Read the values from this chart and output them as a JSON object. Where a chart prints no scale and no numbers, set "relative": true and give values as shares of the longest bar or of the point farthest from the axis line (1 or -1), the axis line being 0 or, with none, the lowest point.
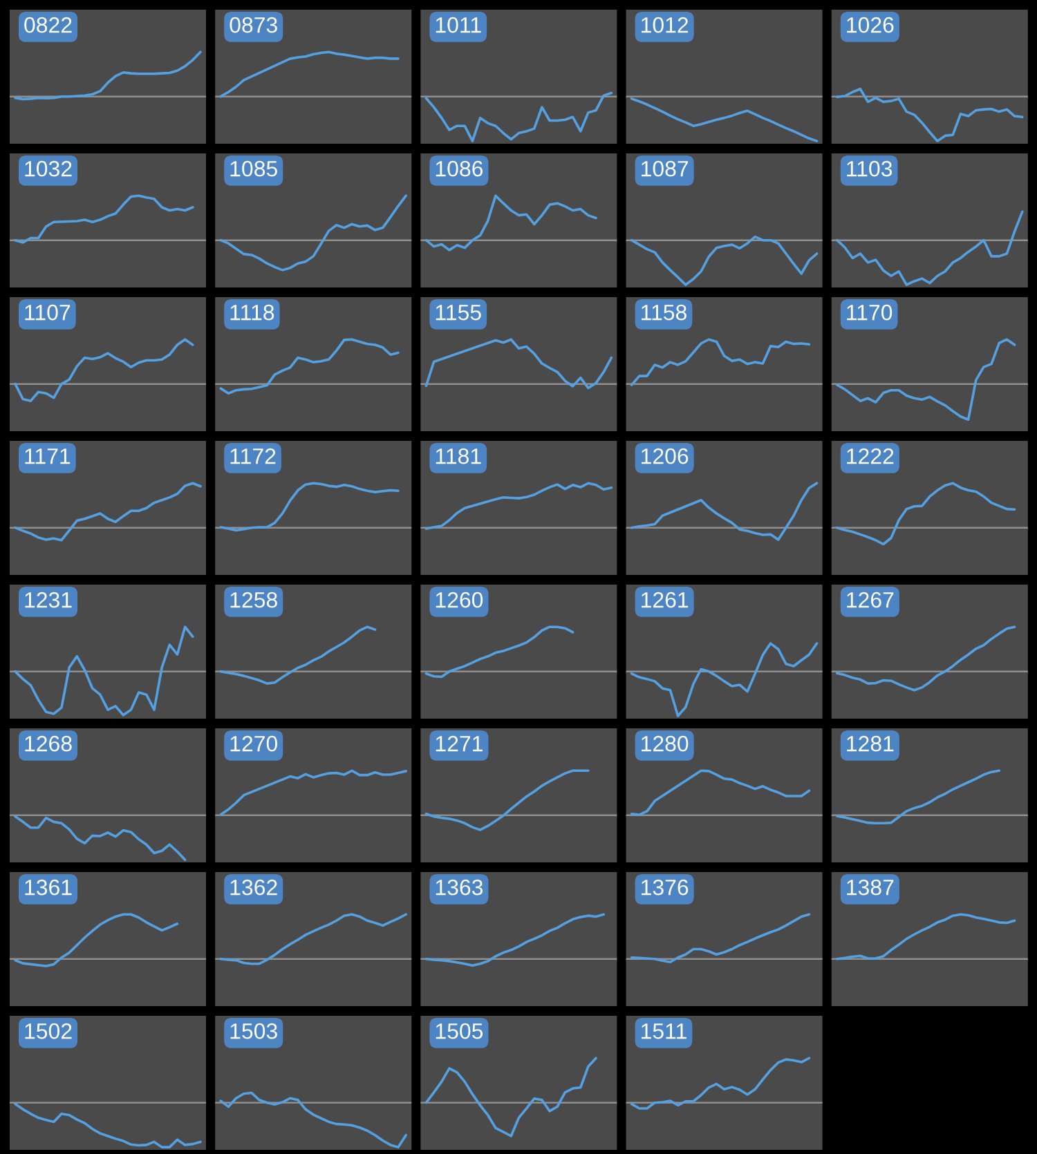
{
  "chart_data": [
    {
      "type": "line",
      "title": "0822",
      "relative": true,
      "categories": [
        null,
        null,
        null,
        null,
        null,
        null,
        null,
        null,
        null,
        null,
        null,
        null,
        null,
        null,
        null,
        null,
        null,
        null,
        null,
        null,
        null,
        null,
        null,
        null,
        null
      ],
      "values": [
        -0.03,
        -0.06,
        -0.05,
        -0.03,
        -0.04,
        -0.03,
        0,
        0,
        0.01,
        0.02,
        0.05,
        0.12,
        0.31,
        0.46,
        0.54,
        0.52,
        0.51,
        0.51,
        0.51,
        0.52,
        0.53,
        0.58,
        0.68,
        0.82,
        1
      ],
      "color": "#55a0e0",
      "ref_lines": [
        {
          "axis": "y",
          "value": 0,
          "color": "#8f8f8f"
        }
      ]
    },
    {
      "type": "line",
      "title": "0873",
      "relative": true,
      "categories": [
        null,
        null,
        null,
        null,
        null,
        null,
        null,
        null,
        null,
        null,
        null,
        null,
        null,
        null,
        null,
        null,
        null,
        null,
        null,
        null,
        null,
        null,
        null,
        null,
        null
      ],
      "values": [
        0,
        0.1,
        0.22,
        0.37,
        null,
        null,
        null,
        null,
        null,
        0.85,
        0.88,
        0.9,
        0.95,
        0.98,
        1,
        0.96,
        0.94,
        0.91,
        0.88,
        0.85,
        0.87,
        0.87,
        0.85,
        0.85,
        null
      ],
      "color": "#55a0e0",
      "ref_lines": [
        {
          "axis": "y",
          "value": 0,
          "color": "#8f8f8f"
        }
      ]
    },
    {
      "type": "line",
      "title": "1011",
      "relative": true,
      "categories": [
        null,
        null,
        null,
        null,
        null,
        null,
        null,
        null,
        null,
        null,
        null,
        null,
        null,
        null,
        null,
        null,
        null,
        null,
        null,
        null,
        null,
        null,
        null,
        null,
        null
      ],
      "values": [
        -0.04,
        -0.24,
        -0.48,
        -0.75,
        -0.66,
        -0.66,
        -1,
        -0.48,
        -0.6,
        -0.66,
        -0.82,
        -0.96,
        -0.82,
        -0.78,
        -0.72,
        -0.24,
        -0.54,
        -0.54,
        -0.52,
        -0.46,
        -0.78,
        -0.36,
        -0.31,
        0.02,
        0.08
      ],
      "color": "#55a0e0",
      "ref_lines": [
        {
          "axis": "y",
          "value": 0,
          "color": "#8f8f8f"
        }
      ]
    },
    {
      "type": "line",
      "title": "1012",
      "relative": true,
      "categories": [
        null,
        null,
        null,
        null,
        null,
        null,
        null,
        null,
        null,
        null,
        null,
        null,
        null,
        null,
        null,
        null,
        null,
        null,
        null,
        null,
        null,
        null,
        null,
        null,
        null
      ],
      "values": [
        -0.05,
        -0.11,
        -0.18,
        -0.26,
        -0.34,
        -0.43,
        -0.51,
        -0.58,
        -0.66,
        -0.62,
        -0.57,
        -0.52,
        -0.48,
        -0.43,
        -0.37,
        -0.32,
        -0.4,
        -0.48,
        -0.55,
        -0.63,
        -0.71,
        -0.78,
        -0.86,
        -0.94,
        -1
      ],
      "color": "#55a0e0",
      "ref_lines": [
        {
          "axis": "y",
          "value": 0,
          "color": "#8f8f8f"
        }
      ]
    },
    {
      "type": "line",
      "title": "1026",
      "relative": true,
      "categories": [
        null,
        null,
        null,
        null,
        null,
        null,
        null,
        null,
        null,
        null,
        null,
        null,
        null,
        null,
        null,
        null,
        null,
        null,
        null,
        null,
        null,
        null,
        null,
        null,
        null
      ],
      "values": [
        -0.01,
        0.01,
        0.1,
        0.17,
        -0.12,
        -0.03,
        -0.12,
        -0.1,
        -0.05,
        -0.34,
        -0.41,
        -0.59,
        -0.8,
        -1,
        -0.88,
        -0.86,
        -0.39,
        -0.44,
        -0.31,
        -0.29,
        -0.28,
        -0.34,
        -0.29,
        -0.44,
        -0.46
      ],
      "color": "#55a0e0",
      "ref_lines": [
        {
          "axis": "y",
          "value": 0,
          "color": "#8f8f8f"
        }
      ]
    },
    {
      "type": "line",
      "title": "1032",
      "relative": true,
      "categories": [
        null,
        null,
        null,
        null,
        null,
        null,
        null,
        null,
        null,
        null,
        null,
        null,
        null,
        null,
        null,
        null,
        null,
        null,
        null,
        null,
        null,
        null,
        null,
        null,
        null
      ],
      "values": [
        0,
        -0.05,
        0.05,
        0.05,
        0.31,
        0.41,
        null,
        null,
        0.43,
        0.46,
        0.41,
        0.46,
        0.54,
        0.6,
        0.8,
        0.98,
        1,
        0.96,
        0.93,
        0.74,
        0.67,
        0.7,
        0.67,
        0.74,
        null
      ],
      "color": "#55a0e0",
      "ref_lines": [
        {
          "axis": "y",
          "value": 0,
          "color": "#8f8f8f"
        }
      ]
    },
    {
      "type": "line",
      "title": "1085",
      "relative": true,
      "categories": [
        null,
        null,
        null,
        null,
        null,
        null,
        null,
        null,
        null,
        null,
        null,
        null,
        null,
        null,
        null,
        null,
        null,
        null,
        null,
        null,
        null,
        null,
        null,
        null,
        null
      ],
      "values": [
        0,
        -0.07,
        -0.19,
        -0.31,
        -0.33,
        -0.41,
        -0.52,
        -0.6,
        -0.67,
        -0.62,
        -0.52,
        -0.48,
        -0.36,
        -0.08,
        0.21,
        0.34,
        0.28,
        0.36,
        0.31,
        0.33,
        0.23,
        0.28,
        0.52,
        0.77,
        1
      ],
      "color": "#55a0e0",
      "ref_lines": [
        {
          "axis": "y",
          "value": 0,
          "color": "#8f8f8f"
        }
      ]
    },
    {
      "type": "line",
      "title": "1086",
      "relative": true,
      "categories": [
        null,
        null,
        null,
        null,
        null,
        null,
        null,
        null,
        null,
        null,
        null,
        null,
        null,
        null,
        null,
        null,
        null,
        null,
        null,
        null,
        null,
        null,
        null,
        null,
        null
      ],
      "values": [
        0,
        -0.14,
        -0.09,
        -0.22,
        -0.11,
        -0.17,
        0,
        0.11,
        0.44,
        1,
        0.83,
        0.67,
        0.56,
        0.58,
        0.36,
        0.56,
        0.8,
        0.83,
        0.76,
        0.67,
        0.7,
        0.56,
        0.5,
        null,
        null
      ],
      "color": "#55a0e0",
      "ref_lines": [
        {
          "axis": "y",
          "value": 0,
          "color": "#8f8f8f"
        }
      ]
    },
    {
      "type": "line",
      "title": "1087",
      "relative": true,
      "categories": [
        null,
        null,
        null,
        null,
        null,
        null,
        null,
        null,
        null,
        null,
        null,
        null,
        null,
        null,
        null,
        null,
        null,
        null,
        null,
        null,
        null,
        null,
        null,
        null,
        null
      ],
      "values": [
        0,
        -0.1,
        -0.2,
        -0.27,
        -0.5,
        -0.67,
        -0.83,
        -1,
        -0.87,
        -0.7,
        -0.37,
        -0.17,
        -0.13,
        -0.1,
        -0.18,
        -0.07,
        0.08,
        0,
        0,
        -0.07,
        -0.3,
        -0.53,
        -0.75,
        -0.45,
        -0.3
      ],
      "color": "#55a0e0",
      "ref_lines": [
        {
          "axis": "y",
          "value": 0,
          "color": "#8f8f8f"
        }
      ]
    },
    {
      "type": "line",
      "title": "1103",
      "relative": true,
      "categories": [
        null,
        null,
        null,
        null,
        null,
        null,
        null,
        null,
        null,
        null,
        null,
        null,
        null,
        null,
        null,
        null,
        null,
        null,
        null,
        null,
        null,
        null,
        null,
        null,
        null
      ],
      "values": [
        0,
        -0.16,
        -0.4,
        -0.3,
        -0.5,
        -0.44,
        -0.68,
        -0.8,
        -0.7,
        -1,
        -0.92,
        -0.86,
        -0.96,
        -0.8,
        -0.7,
        -0.5,
        -0.4,
        -0.26,
        -0.14,
        0,
        -0.36,
        -0.36,
        -0.3,
        0.2,
        0.64
      ],
      "color": "#55a0e0",
      "ref_lines": [
        {
          "axis": "y",
          "value": 0,
          "color": "#8f8f8f"
        }
      ]
    },
    {
      "type": "line",
      "title": "1107",
      "relative": true,
      "categories": [
        null,
        null,
        null,
        null,
        null,
        null,
        null,
        null,
        null,
        null,
        null,
        null,
        null,
        null,
        null,
        null,
        null,
        null,
        null,
        null,
        null,
        null,
        null,
        null,
        null
      ],
      "values": [
        0,
        -0.34,
        -0.38,
        -0.18,
        -0.21,
        -0.31,
        0,
        0.1,
        0.4,
        0.59,
        0.56,
        0.6,
        0.69,
        0.58,
        0.5,
        0.38,
        0.48,
        0.53,
        0.53,
        0.55,
        0.66,
        0.88,
        1,
        0.88,
        null
      ],
      "color": "#55a0e0",
      "ref_lines": [
        {
          "axis": "y",
          "value": 0,
          "color": "#8f8f8f"
        }
      ]
    },
    {
      "type": "line",
      "title": "1118",
      "relative": true,
      "categories": [
        null,
        null,
        null,
        null,
        null,
        null,
        null,
        null,
        null,
        null,
        null,
        null,
        null,
        null,
        null,
        null,
        null,
        null,
        null,
        null,
        null,
        null,
        null,
        null,
        null
      ],
      "values": [
        -0.1,
        -0.21,
        -0.14,
        -0.12,
        -0.11,
        -0.07,
        -0.03,
        0.21,
        0.3,
        0.37,
        0.59,
        0.55,
        0.49,
        0.51,
        0.55,
        0.75,
        0.99,
        1,
        0.95,
        0.9,
        0.88,
        0.82,
        0.66,
        0.7,
        null
      ],
      "color": "#55a0e0",
      "ref_lines": [
        {
          "axis": "y",
          "value": 0,
          "color": "#8f8f8f"
        }
      ]
    },
    {
      "type": "line",
      "title": "1155",
      "relative": true,
      "categories": [
        null,
        null,
        null,
        null,
        null,
        null,
        null,
        null,
        null,
        null,
        null,
        null,
        null,
        null,
        null,
        null,
        null,
        null,
        null,
        null,
        null,
        null,
        null,
        null,
        null
      ],
      "values": [
        -0.04,
        0.5,
        null,
        null,
        null,
        null,
        null,
        null,
        null,
        0.98,
        0.93,
        1,
        0.8,
        0.84,
        0.68,
        0.46,
        0.36,
        0.27,
        0.07,
        -0.05,
        0.14,
        -0.09,
        0.02,
        0.27,
        0.59
      ],
      "color": "#55a0e0",
      "ref_lines": [
        {
          "axis": "y",
          "value": 0,
          "color": "#8f8f8f"
        }
      ]
    },
    {
      "type": "line",
      "title": "1158",
      "relative": true,
      "categories": [
        null,
        null,
        null,
        null,
        null,
        null,
        null,
        null,
        null,
        null,
        null,
        null,
        null,
        null,
        null,
        null,
        null,
        null,
        null,
        null,
        null,
        null,
        null,
        null,
        null
      ],
      "values": [
        -0.02,
        0.18,
        0.18,
        0.43,
        0.37,
        0.49,
        0.43,
        0.51,
        null,
        0.91,
        1,
        0.95,
        0.63,
        0.52,
        0.55,
        0.45,
        0.49,
        0.46,
        0.85,
        0.83,
        0.95,
        0.9,
        0.91,
        0.89,
        null
      ],
      "color": "#55a0e0",
      "ref_lines": [
        {
          "axis": "y",
          "value": 0,
          "color": "#8f8f8f"
        }
      ]
    },
    {
      "type": "line",
      "title": "1170",
      "relative": true,
      "categories": [
        null,
        null,
        null,
        null,
        null,
        null,
        null,
        null,
        null,
        null,
        null,
        null,
        null,
        null,
        null,
        null,
        null,
        null,
        null,
        null,
        null,
        null,
        null,
        null,
        null
      ],
      "values": [
        -0.02,
        -0.12,
        -0.25,
        -0.38,
        -0.32,
        -0.41,
        -0.2,
        -0.14,
        -0.14,
        -0.26,
        -0.32,
        -0.35,
        -0.29,
        -0.39,
        -0.48,
        -0.61,
        -0.73,
        -0.8,
        0.09,
        0.38,
        0.45,
        0.92,
        1,
        0.88,
        null
      ],
      "color": "#55a0e0",
      "ref_lines": [
        {
          "axis": "y",
          "value": 0,
          "color": "#8f8f8f"
        }
      ]
    },
    {
      "type": "line",
      "title": "1171",
      "relative": true,
      "categories": [
        null,
        null,
        null,
        null,
        null,
        null,
        null,
        null,
        null,
        null,
        null,
        null,
        null,
        null,
        null,
        null,
        null,
        null,
        null,
        null,
        null,
        null,
        null,
        null,
        null
      ],
      "values": [
        0,
        -0.07,
        -0.13,
        -0.22,
        -0.27,
        -0.24,
        -0.28,
        -0.06,
        0.16,
        0.2,
        0.26,
        0.32,
        0.2,
        0.13,
        0.26,
        0.38,
        0.38,
        0.44,
        0.56,
        0.62,
        0.68,
        0.76,
        0.94,
        1,
        0.93
      ],
      "color": "#55a0e0",
      "ref_lines": [
        {
          "axis": "y",
          "value": 0,
          "color": "#8f8f8f"
        }
      ]
    },
    {
      "type": "line",
      "title": "1172",
      "relative": true,
      "categories": [
        null,
        null,
        null,
        null,
        null,
        null,
        null,
        null,
        null,
        null,
        null,
        null,
        null,
        null,
        null,
        null,
        null,
        null,
        null,
        null,
        null,
        null,
        null,
        null,
        null
      ],
      "values": [
        0.01,
        -0.02,
        -0.06,
        -0.03,
        0,
        0.01,
        0.01,
        0.11,
        0.32,
        0.61,
        0.84,
        0.97,
        1,
        0.98,
        0.94,
        0.92,
        0.96,
        0.93,
        0.87,
        0.83,
        0.8,
        0.82,
        0.84,
        0.83,
        null
      ],
      "color": "#55a0e0",
      "ref_lines": [
        {
          "axis": "y",
          "value": 0,
          "color": "#8f8f8f"
        }
      ]
    },
    {
      "type": "line",
      "title": "1181",
      "relative": true,
      "categories": [
        null,
        null,
        null,
        null,
        null,
        null,
        null,
        null,
        null,
        null,
        null,
        null,
        null,
        null,
        null,
        null,
        null,
        null,
        null,
        null,
        null,
        null,
        null,
        null,
        null
      ],
      "values": [
        -0.02,
        0.01,
        0.04,
        0.17,
        0.33,
        0.44,
        null,
        null,
        null,
        0.64,
        0.68,
        0.67,
        0.66,
        0.69,
        0.74,
        0.83,
        0.91,
        0.97,
        0.87,
        0.96,
        0.91,
        1,
        0.96,
        0.86,
        0.9
      ],
      "color": "#55a0e0",
      "ref_lines": [
        {
          "axis": "y",
          "value": 0,
          "color": "#8f8f8f"
        }
      ]
    },
    {
      "type": "line",
      "title": "1206",
      "relative": true,
      "categories": [
        null,
        null,
        null,
        null,
        null,
        null,
        null,
        null,
        null,
        null,
        null,
        null,
        null,
        null,
        null,
        null,
        null,
        null,
        null,
        null,
        null,
        null,
        null,
        null,
        null
      ],
      "values": [
        0,
        0.03,
        0.05,
        0.08,
        0.27,
        null,
        null,
        null,
        null,
        0.62,
        0.45,
        0.32,
        0.21,
        0.11,
        -0.04,
        -0.07,
        -0.12,
        -0.16,
        -0.15,
        -0.27,
        0,
        0.27,
        0.62,
        0.89,
        1
      ],
      "color": "#55a0e0",
      "ref_lines": [
        {
          "axis": "y",
          "value": 0,
          "color": "#8f8f8f"
        }
      ]
    },
    {
      "type": "line",
      "title": "1222",
      "relative": true,
      "categories": [
        null,
        null,
        null,
        null,
        null,
        null,
        null,
        null,
        null,
        null,
        null,
        null,
        null,
        null,
        null,
        null,
        null,
        null,
        null,
        null,
        null,
        null,
        null,
        null,
        null
      ],
      "values": [
        0,
        -0.05,
        -0.09,
        -0.15,
        -0.21,
        -0.28,
        -0.37,
        -0.23,
        0.17,
        0.42,
        0.48,
        0.49,
        0.7,
        0.84,
        0.95,
        1,
        0.9,
        0.84,
        0.81,
        0.7,
        0.56,
        0.49,
        0.42,
        0.41,
        null
      ],
      "color": "#55a0e0",
      "ref_lines": [
        {
          "axis": "y",
          "value": 0,
          "color": "#8f8f8f"
        }
      ]
    },
    {
      "type": "line",
      "title": "1231",
      "relative": true,
      "categories": [
        null,
        null,
        null,
        null,
        null,
        null,
        null,
        null,
        null,
        null,
        null,
        null,
        null,
        null,
        null,
        null,
        null,
        null,
        null,
        null,
        null,
        null,
        null,
        null,
        null
      ],
      "values": [
        0,
        -0.17,
        -0.31,
        -0.64,
        -0.91,
        -0.95,
        -0.81,
        0.09,
        0.34,
        0.03,
        -0.38,
        -0.52,
        -0.86,
        -0.78,
        -0.98,
        -0.86,
        -0.47,
        -0.52,
        -0.86,
        0.09,
        0.6,
        0.38,
        1,
        0.78,
        null
      ],
      "color": "#55a0e0",
      "ref_lines": [
        {
          "axis": "y",
          "value": 0,
          "color": "#8f8f8f"
        }
      ]
    },
    {
      "type": "line",
      "title": "1258",
      "relative": true,
      "categories": [
        null,
        null,
        null,
        null,
        null,
        null,
        null,
        null,
        null,
        null,
        null,
        null,
        null,
        null,
        null,
        null,
        null,
        null,
        null,
        null,
        null,
        null,
        null,
        null,
        null
      ],
      "values": [
        0,
        -0.03,
        -0.06,
        -0.1,
        -0.15,
        -0.2,
        -0.27,
        -0.25,
        -0.13,
        -0.02,
        0.08,
        0.15,
        0.25,
        0.33,
        0.45,
        0.55,
        0.65,
        0.78,
        0.92,
        1,
        0.94,
        null,
        null,
        null,
        null
      ],
      "color": "#55a0e0",
      "ref_lines": [
        {
          "axis": "y",
          "value": 0,
          "color": "#8f8f8f"
        }
      ]
    },
    {
      "type": "line",
      "title": "1260",
      "relative": true,
      "categories": [
        null,
        null,
        null,
        null,
        null,
        null,
        null,
        null,
        null,
        null,
        null,
        null,
        null,
        null,
        null,
        null,
        null,
        null,
        null,
        null,
        null,
        null,
        null,
        null,
        null
      ],
      "values": [
        -0.05,
        -0.11,
        -0.12,
        0,
        0.06,
        0.12,
        0.2,
        0.28,
        0.34,
        0.42,
        0.46,
        0.52,
        0.58,
        0.65,
        0.77,
        0.92,
        1,
        1,
        0.97,
        0.88,
        null,
        null,
        null,
        null,
        null
      ],
      "color": "#55a0e0",
      "ref_lines": [
        {
          "axis": "y",
          "value": 0,
          "color": "#8f8f8f"
        }
      ]
    },
    {
      "type": "line",
      "title": "1261",
      "relative": true,
      "categories": [
        null,
        null,
        null,
        null,
        null,
        null,
        null,
        null,
        null,
        null,
        null,
        null,
        null,
        null,
        null,
        null,
        null,
        null,
        null,
        null,
        null,
        null,
        null,
        null,
        null
      ],
      "values": [
        -0.05,
        -0.13,
        -0.17,
        -0.22,
        -0.38,
        -0.42,
        -1,
        -0.8,
        -0.28,
        0.05,
        0,
        -0.1,
        -0.22,
        -0.33,
        -0.3,
        -0.45,
        -0.05,
        0.37,
        0.63,
        0.5,
        0.17,
        0.12,
        0.25,
        0.38,
        0.63
      ],
      "color": "#55a0e0",
      "ref_lines": [
        {
          "axis": "y",
          "value": 0,
          "color": "#8f8f8f"
        }
      ]
    },
    {
      "type": "line",
      "title": "1267",
      "relative": true,
      "categories": [
        null,
        null,
        null,
        null,
        null,
        null,
        null,
        null,
        null,
        null,
        null,
        null,
        null,
        null,
        null,
        null,
        null,
        null,
        null,
        null,
        null,
        null,
        null,
        null,
        null
      ],
      "values": [
        -0.04,
        -0.08,
        -0.14,
        -0.18,
        -0.27,
        -0.26,
        -0.2,
        -0.21,
        -0.29,
        -0.36,
        -0.42,
        -0.36,
        -0.24,
        -0.09,
        0,
        0.12,
        0.26,
        0.38,
        0.51,
        0.59,
        0.73,
        0.85,
        0.96,
        1,
        null
      ],
      "color": "#55a0e0",
      "ref_lines": [
        {
          "axis": "y",
          "value": 0,
          "color": "#8f8f8f"
        }
      ]
    },
    {
      "type": "line",
      "title": "1268",
      "relative": true,
      "categories": [
        null,
        null,
        null,
        null,
        null,
        null,
        null,
        null,
        null,
        null,
        null,
        null,
        null,
        null,
        null,
        null,
        null,
        null,
        null,
        null,
        null,
        null,
        null,
        null,
        null
      ],
      "values": [
        -0.03,
        -0.15,
        -0.28,
        -0.28,
        -0.06,
        -0.15,
        -0.18,
        -0.32,
        -0.53,
        -0.63,
        -0.46,
        -0.47,
        -0.39,
        -0.48,
        -0.34,
        -0.38,
        -0.54,
        -0.66,
        -0.85,
        -0.8,
        -0.66,
        -0.82,
        -1,
        null,
        null
      ],
      "color": "#55a0e0",
      "ref_lines": [
        {
          "axis": "y",
          "value": 0,
          "color": "#8f8f8f"
        }
      ]
    },
    {
      "type": "line",
      "title": "1270",
      "relative": true,
      "categories": [
        null,
        null,
        null,
        null,
        null,
        null,
        null,
        null,
        null,
        null,
        null,
        null,
        null,
        null,
        null,
        null,
        null,
        null,
        null,
        null,
        null,
        null,
        null,
        null,
        null
      ],
      "values": [
        0.01,
        0.13,
        0.28,
        0.45,
        null,
        null,
        null,
        null,
        null,
        0.87,
        0.83,
        0.92,
        0.85,
        0.9,
        0.94,
        0.95,
        0.91,
        1,
        0.9,
        0.9,
        0.96,
        0.91,
        0.91,
        0.95,
        0.99
      ],
      "color": "#55a0e0",
      "ref_lines": [
        {
          "axis": "y",
          "value": 0,
          "color": "#8f8f8f"
        }
      ]
    },
    {
      "type": "line",
      "title": "1271",
      "relative": true,
      "categories": [
        null,
        null,
        null,
        null,
        null,
        null,
        null,
        null,
        null,
        null,
        null,
        null,
        null,
        null,
        null,
        null,
        null,
        null,
        null,
        null,
        null,
        null,
        null,
        null,
        null
      ],
      "values": [
        0.03,
        -0.03,
        -0.06,
        -0.08,
        -0.12,
        -0.18,
        -0.27,
        -0.33,
        -0.24,
        -0.13,
        -0.01,
        0.14,
        0.28,
        0.42,
        0.53,
        0.66,
        0.76,
        0.85,
        0.94,
        1,
        1,
        1,
        null,
        null,
        null
      ],
      "color": "#55a0e0",
      "ref_lines": [
        {
          "axis": "y",
          "value": 0,
          "color": "#8f8f8f"
        }
      ]
    },
    {
      "type": "line",
      "title": "1280",
      "relative": true,
      "categories": [
        null,
        null,
        null,
        null,
        null,
        null,
        null,
        null,
        null,
        null,
        null,
        null,
        null,
        null,
        null,
        null,
        null,
        null,
        null,
        null,
        null,
        null,
        null,
        null,
        null
      ],
      "values": [
        0.03,
        0.01,
        0.09,
        0.32,
        null,
        null,
        null,
        null,
        null,
        1,
        0.99,
        0.91,
        0.82,
        0.8,
        0.72,
        0.66,
        0.59,
        0.65,
        0.57,
        0.51,
        0.43,
        0.43,
        0.43,
        0.55,
        null
      ],
      "color": "#55a0e0",
      "ref_lines": [
        {
          "axis": "y",
          "value": 0,
          "color": "#8f8f8f"
        }
      ]
    },
    {
      "type": "line",
      "title": "1281",
      "relative": true,
      "categories": [
        null,
        null,
        null,
        null,
        null,
        null,
        null,
        null,
        null,
        null,
        null,
        null,
        null,
        null,
        null,
        null,
        null,
        null,
        null,
        null,
        null,
        null,
        null,
        null,
        null
      ],
      "values": [
        -0.02,
        -0.05,
        -0.09,
        -0.13,
        -0.17,
        -0.18,
        -0.18,
        -0.17,
        -0.04,
        0.09,
        0.16,
        0.21,
        0.29,
        0.4,
        0.48,
        0.58,
        0.66,
        0.74,
        0.82,
        0.91,
        0.97,
        1,
        null,
        null,
        null
      ],
      "color": "#55a0e0",
      "ref_lines": [
        {
          "axis": "y",
          "value": 0,
          "color": "#8f8f8f"
        }
      ]
    },
    {
      "type": "line",
      "title": "1361",
      "relative": true,
      "categories": [
        null,
        null,
        null,
        null,
        null,
        null,
        null,
        null,
        null,
        null,
        null,
        null,
        null,
        null,
        null,
        null,
        null,
        null,
        null,
        null,
        null,
        null,
        null,
        null,
        null
      ],
      "values": [
        -0.03,
        -0.1,
        -0.12,
        -0.14,
        -0.16,
        -0.12,
        0.03,
        0.14,
        0.31,
        0.48,
        0.63,
        0.77,
        0.87,
        0.95,
        1,
        1,
        0.93,
        0.82,
        0.73,
        0.64,
        0.71,
        0.79,
        null,
        null,
        null
      ],
      "color": "#55a0e0",
      "ref_lines": [
        {
          "axis": "y",
          "value": 0,
          "color": "#8f8f8f"
        }
      ]
    },
    {
      "type": "line",
      "title": "1362",
      "relative": true,
      "categories": [
        null,
        null,
        null,
        null,
        null,
        null,
        null,
        null,
        null,
        null,
        null,
        null,
        null,
        null,
        null,
        null,
        null,
        null,
        null,
        null,
        null,
        null,
        null,
        null,
        null
      ],
      "values": [
        0,
        -0.02,
        -0.03,
        -0.09,
        -0.11,
        -0.11,
        -0.02,
        0.09,
        0.22,
        0.33,
        0.43,
        0.54,
        0.62,
        0.7,
        0.77,
        0.86,
        0.97,
        1,
        0.95,
        0.86,
        0.81,
        0.75,
        0.83,
        0.91,
        1
      ],
      "color": "#55a0e0",
      "ref_lines": [
        {
          "axis": "y",
          "value": 0,
          "color": "#8f8f8f"
        }
      ]
    },
    {
      "type": "line",
      "title": "1363",
      "relative": true,
      "categories": [
        null,
        null,
        null,
        null,
        null,
        null,
        null,
        null,
        null,
        null,
        null,
        null,
        null,
        null,
        null,
        null,
        null,
        null,
        null,
        null,
        null,
        null,
        null,
        null,
        null
      ],
      "values": [
        0,
        -0.02,
        -0.03,
        -0.05,
        -0.08,
        -0.11,
        -0.15,
        -0.11,
        -0.05,
        0.06,
        0.14,
        0.2,
        0.28,
        0.38,
        0.45,
        0.53,
        0.63,
        0.7,
        0.8,
        0.89,
        0.94,
        0.97,
        0.95,
        1,
        null
      ],
      "color": "#55a0e0",
      "ref_lines": [
        {
          "axis": "y",
          "value": 0,
          "color": "#8f8f8f"
        }
      ]
    },
    {
      "type": "line",
      "title": "1376",
      "relative": true,
      "categories": [
        null,
        null,
        null,
        null,
        null,
        null,
        null,
        null,
        null,
        null,
        null,
        null,
        null,
        null,
        null,
        null,
        null,
        null,
        null,
        null,
        null,
        null,
        null,
        null,
        null
      ],
      "values": [
        0.03,
        0.02,
        0.01,
        0,
        -0.04,
        -0.07,
        0.03,
        0.1,
        0.22,
        0.22,
        0.17,
        0.1,
        0.15,
        0.22,
        0.31,
        0.38,
        0.46,
        0.53,
        0.6,
        0.66,
        0.75,
        0.85,
        0.95,
        1,
        null
      ],
      "color": "#55a0e0",
      "ref_lines": [
        {
          "axis": "y",
          "value": 0,
          "color": "#8f8f8f"
        }
      ]
    },
    {
      "type": "line",
      "title": "1387",
      "relative": true,
      "categories": [
        null,
        null,
        null,
        null,
        null,
        null,
        null,
        null,
        null,
        null,
        null,
        null,
        null,
        null,
        null,
        null,
        null,
        null,
        null,
        null,
        null,
        null,
        null,
        null,
        null
      ],
      "values": [
        0,
        0.02,
        0.05,
        0.07,
        0.01,
        0.01,
        0.06,
        0.2,
        0.32,
        0.45,
        0.55,
        0.64,
        0.72,
        0.82,
        0.88,
        0.97,
        1,
        0.98,
        0.93,
        0.9,
        0.86,
        0.82,
        0.81,
        0.86,
        null
      ],
      "color": "#55a0e0",
      "ref_lines": [
        {
          "axis": "y",
          "value": 0,
          "color": "#8f8f8f"
        }
      ]
    },
    {
      "type": "line",
      "title": "1502",
      "relative": true,
      "categories": [
        null,
        null,
        null,
        null,
        null,
        null,
        null,
        null,
        null,
        null,
        null,
        null,
        null,
        null,
        null,
        null,
        null,
        null,
        null,
        null,
        null,
        null,
        null,
        null,
        null
      ],
      "values": [
        -0.03,
        -0.15,
        -0.25,
        -0.34,
        -0.39,
        -0.43,
        -0.25,
        -0.28,
        -0.38,
        -0.46,
        -0.59,
        -0.69,
        -0.75,
        -0.81,
        -0.86,
        -0.94,
        -0.96,
        -0.95,
        -0.88,
        -1,
        -1,
        -0.83,
        -0.95,
        -0.93,
        -0.88
      ],
      "color": "#55a0e0",
      "ref_lines": [
        {
          "axis": "y",
          "value": 0,
          "color": "#8f8f8f"
        }
      ]
    },
    {
      "type": "line",
      "title": "1503",
      "relative": true,
      "categories": [
        null,
        null,
        null,
        null,
        null,
        null,
        null,
        null,
        null,
        null,
        null,
        null,
        null,
        null,
        null,
        null,
        null,
        null,
        null,
        null,
        null,
        null,
        null,
        null,
        null
      ],
      "values": [
        0.04,
        -0.09,
        0.1,
        0.2,
        0.22,
        0.06,
        0,
        -0.04,
        0.01,
        0.1,
        0.06,
        -0.15,
        -0.27,
        -0.35,
        -0.43,
        -0.48,
        -0.49,
        -0.51,
        -0.56,
        -0.63,
        -0.73,
        -0.85,
        -0.95,
        -1,
        -0.73
      ],
      "color": "#55a0e0",
      "ref_lines": [
        {
          "axis": "y",
          "value": 0,
          "color": "#8f8f8f"
        }
      ]
    },
    {
      "type": "line",
      "title": "1505",
      "relative": true,
      "categories": [
        null,
        null,
        null,
        null,
        null,
        null,
        null,
        null,
        null,
        null,
        null,
        null,
        null,
        null,
        null,
        null,
        null,
        null,
        null,
        null,
        null,
        null,
        null,
        null,
        null
      ],
      "values": [
        0,
        0.23,
        0.47,
        0.77,
        0.68,
        0.47,
        0.19,
        -0.06,
        -0.28,
        -0.57,
        -0.66,
        -0.75,
        -0.34,
        -0.13,
        0.09,
        0.06,
        -0.19,
        -0.09,
        0.23,
        0.32,
        0.34,
        0.81,
        1,
        null,
        null
      ],
      "color": "#55a0e0",
      "ref_lines": [
        {
          "axis": "y",
          "value": 0,
          "color": "#8f8f8f"
        }
      ]
    },
    {
      "type": "line",
      "title": "1511",
      "relative": true,
      "categories": [
        null,
        null,
        null,
        null,
        null,
        null,
        null,
        null,
        null,
        null,
        null,
        null,
        null,
        null,
        null,
        null,
        null,
        null,
        null,
        null,
        null,
        null,
        null,
        null,
        null
      ],
      "values": [
        -0.03,
        -0.13,
        -0.13,
        0,
        0.01,
        0.04,
        -0.06,
        0.03,
        0.03,
        0.17,
        0.34,
        0.42,
        0.3,
        0.35,
        0.29,
        0.18,
        0.3,
        0.52,
        0.73,
        0.9,
        0.97,
        0.95,
        0.91,
        1,
        null
      ],
      "color": "#55a0e0",
      "ref_lines": [
        {
          "axis": "y",
          "value": 0,
          "color": "#8f8f8f"
        }
      ]
    }
  ]
}
